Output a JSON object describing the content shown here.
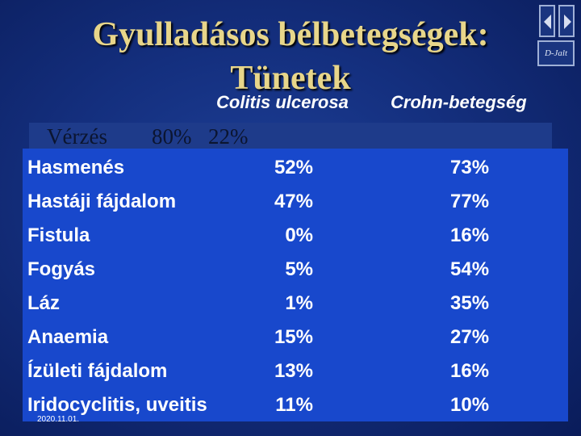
{
  "title": {
    "line1": "Gyulladásos bélbetegségek:",
    "line2": "Tünetek"
  },
  "columns": {
    "col1": "Colitis ulcerosa",
    "col2": "Crohn-betegség"
  },
  "first_row": {
    "label": "Vérzés",
    "v1": "80%",
    "v2": "22%"
  },
  "rows": [
    {
      "label": "Hasmenés",
      "v1": "52%",
      "v2": "73%"
    },
    {
      "label": "Hastáji fájdalom",
      "v1": "47%",
      "v2": "77%"
    },
    {
      "label": "Fistula",
      "v1": "0%",
      "v2": "16%"
    },
    {
      "label": "Fogyás",
      "v1": "5%",
      "v2": "54%"
    },
    {
      "label": "Láz",
      "v1": "1%",
      "v2": "35%"
    },
    {
      "label": "Anaemia",
      "v1": "15%",
      "v2": "27%"
    },
    {
      "label": "Ízületi fájdalom",
      "v1": "13%",
      "v2": "16%"
    },
    {
      "label": "Iridocyclitis, uveitis",
      "v1": "11%",
      "v2": "10%"
    }
  ],
  "date": "2020.11.01.",
  "nav": {
    "logo_text": "D-Jalt",
    "prev_icon": "triangle-left-icon",
    "next_icon": "triangle-right-icon"
  },
  "colors": {
    "title": "#e8d68a",
    "table_bg": "#1848cc",
    "background": "#142f7e"
  }
}
